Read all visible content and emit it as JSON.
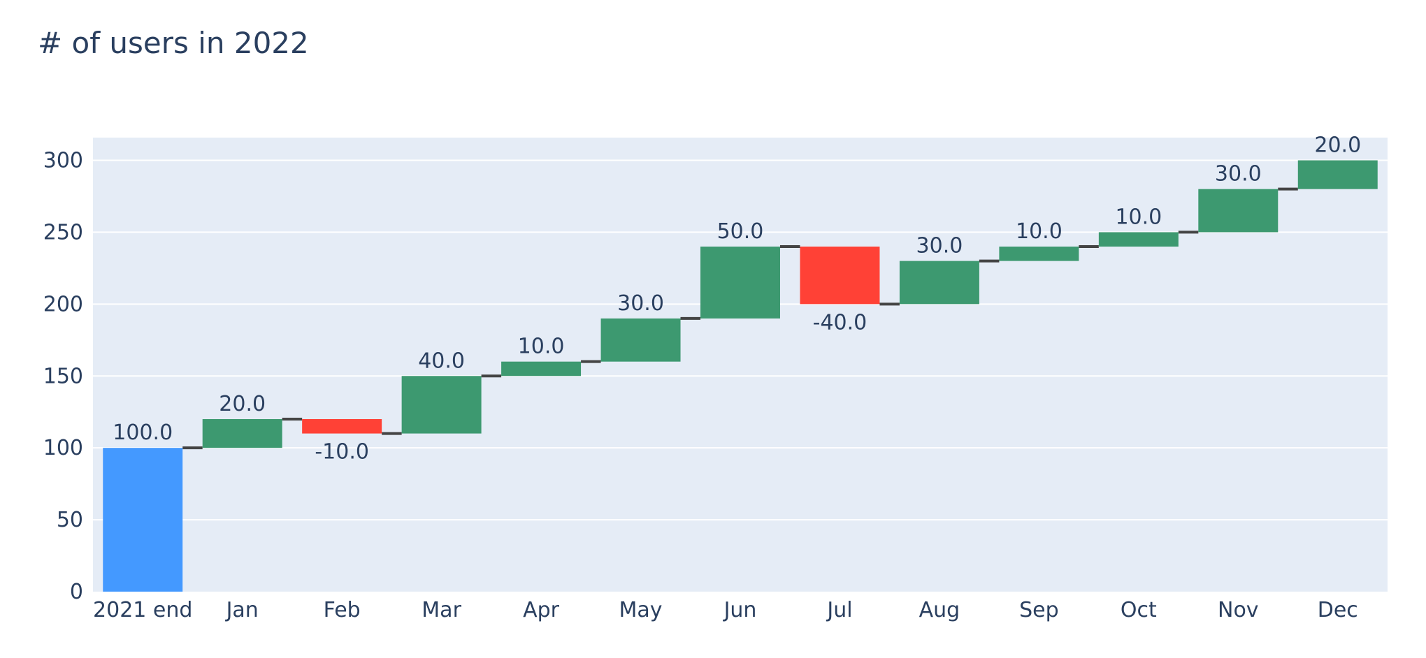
{
  "chart_data": {
    "type": "waterfall",
    "title": "# of users in 2022",
    "xlabel": "",
    "ylabel": "",
    "categories": [
      "2021 end",
      "Jan",
      "Feb",
      "Mar",
      "Apr",
      "May",
      "Jun",
      "Jul",
      "Aug",
      "Sep",
      "Oct",
      "Nov",
      "Dec"
    ],
    "values": [
      100,
      20,
      -10,
      40,
      10,
      30,
      50,
      -40,
      30,
      10,
      10,
      30,
      20
    ],
    "measures": [
      "absolute",
      "relative",
      "relative",
      "relative",
      "relative",
      "relative",
      "relative",
      "relative",
      "relative",
      "relative",
      "relative",
      "relative",
      "relative"
    ],
    "text_labels": [
      "100.0",
      "20.0",
      "-10.0",
      "40.0",
      "10.0",
      "30.0",
      "50.0",
      "-40.0",
      "30.0",
      "10.0",
      "10.0",
      "30.0",
      "20.0"
    ],
    "y_ticks": [
      0,
      50,
      100,
      150,
      200,
      250,
      300
    ],
    "ylim": [
      0,
      315.8
    ],
    "grid": true,
    "colors": {
      "absolute": "#4499ff",
      "increasing": "#3d9970",
      "decreasing": "#ff4136",
      "connector": "#444444",
      "plot_background": "#e5ecf6",
      "gridline": "#ffffff",
      "text": "#2a3f5f"
    }
  }
}
